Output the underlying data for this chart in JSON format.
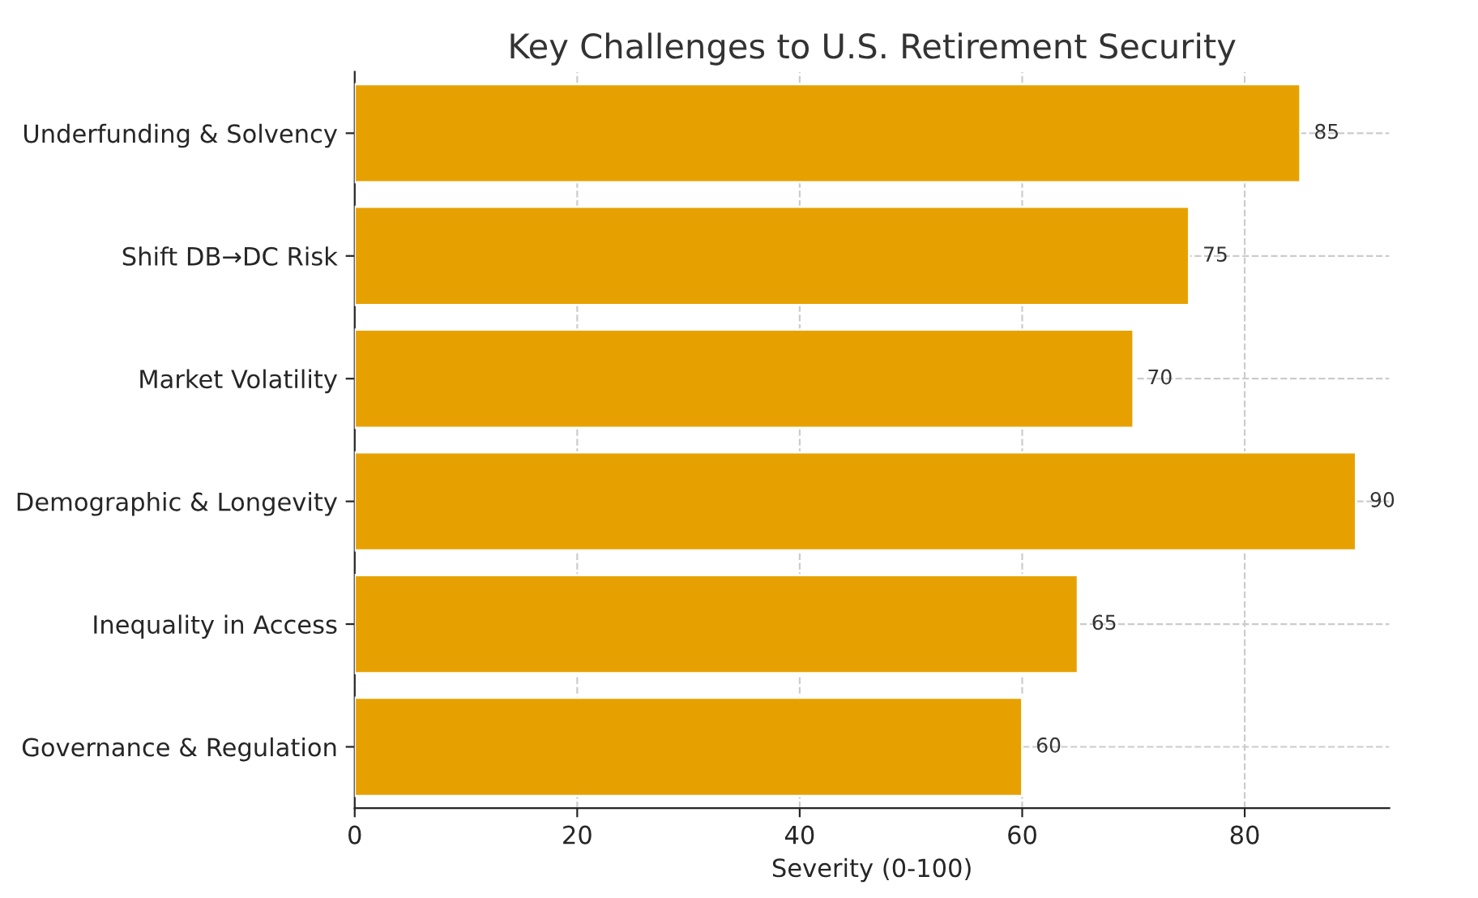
{
  "chart_data": {
    "type": "bar",
    "orientation": "horizontal",
    "title": "Key Challenges to U.S. Retirement Security",
    "xlabel": "Severity (0-100)",
    "categories": [
      "Underfunding & Solvency",
      "Shift DB→DC Risk",
      "Market Volatility",
      "Demographic & Longevity",
      "Inequality in Access",
      "Governance & Regulation"
    ],
    "values": [
      85,
      75,
      70,
      90,
      65,
      60
    ],
    "color": "#e6a100",
    "xlim": [
      0,
      93
    ],
    "xticks": [
      0,
      20,
      40,
      60,
      80
    ],
    "grid": true,
    "data_labels": true
  }
}
